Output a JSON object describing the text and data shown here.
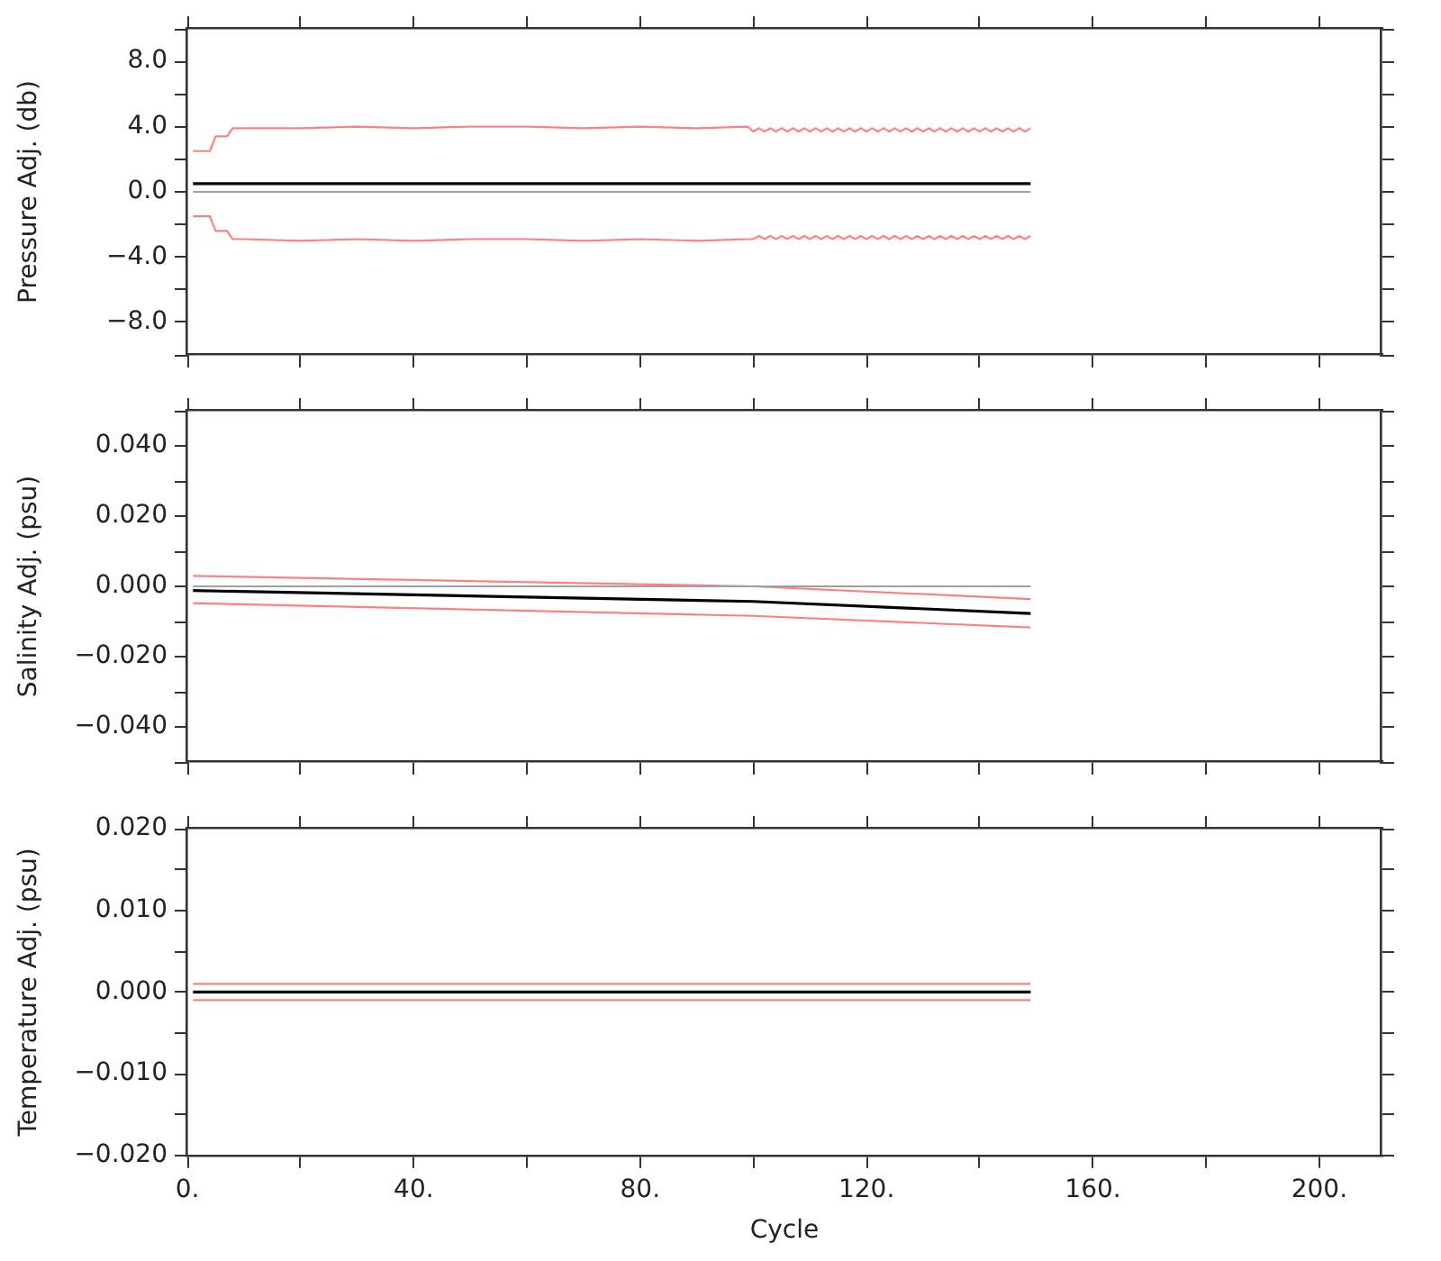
{
  "chart_data": [
    {
      "type": "line",
      "ylabel": "Pressure Adj. (db)",
      "xlim": [
        0,
        211
      ],
      "ylim": [
        -10,
        10
      ],
      "tick_labels": "y",
      "legend": false,
      "grid": false,
      "xticks": [
        0,
        20,
        40,
        60,
        80,
        100,
        120,
        140,
        160,
        180,
        200
      ],
      "yticks": [
        {
          "value": -10,
          "label": null
        },
        {
          "value": -8,
          "label": "−8.0"
        },
        {
          "value": -6,
          "label": null
        },
        {
          "value": -4,
          "label": "−4.0"
        },
        {
          "value": -2,
          "label": null
        },
        {
          "value": 0,
          "label": "0.0"
        },
        {
          "value": 2,
          "label": null
        },
        {
          "value": 4,
          "label": "4.0"
        },
        {
          "value": 6,
          "label": null
        },
        {
          "value": 8,
          "label": "8.0"
        },
        {
          "value": 10,
          "label": null
        }
      ],
      "series": [
        {
          "color": "#a0a0a0",
          "x": [
            1,
            149
          ],
          "values": [
            0,
            0
          ]
        },
        {
          "color": "#000000",
          "x": [
            1,
            149
          ],
          "values": [
            0.5,
            0.5
          ]
        },
        {
          "color": "#ff8080",
          "x": [
            1,
            4,
            5,
            7,
            8,
            10,
            20,
            30,
            40,
            50,
            60,
            70,
            80,
            90,
            99,
            100,
            101,
            102,
            103,
            104,
            105,
            106,
            107,
            108,
            109,
            110,
            111,
            112,
            113,
            114,
            115,
            116,
            117,
            118,
            119,
            120,
            121,
            122,
            123,
            124,
            125,
            126,
            127,
            128,
            129,
            130,
            131,
            132,
            133,
            134,
            135,
            136,
            137,
            138,
            139,
            140,
            141,
            142,
            143,
            144,
            145,
            146,
            147,
            148,
            149
          ],
          "values": [
            2.5,
            2.5,
            3.4,
            3.4,
            3.9,
            3.9,
            3.9,
            4.0,
            3.9,
            4.0,
            4.0,
            3.9,
            4.0,
            3.9,
            4.0,
            3.7,
            3.9,
            3.7,
            3.9,
            3.7,
            3.9,
            3.7,
            3.9,
            3.7,
            3.9,
            3.7,
            3.9,
            3.7,
            3.9,
            3.7,
            3.9,
            3.7,
            3.9,
            3.7,
            3.9,
            3.7,
            3.9,
            3.7,
            3.9,
            3.7,
            3.9,
            3.7,
            3.9,
            3.7,
            3.9,
            3.7,
            3.9,
            3.7,
            3.9,
            3.7,
            3.9,
            3.7,
            3.9,
            3.7,
            3.9,
            3.7,
            3.9,
            3.7,
            3.9,
            3.7,
            3.9,
            3.7,
            3.9,
            3.7,
            3.9
          ]
        },
        {
          "color": "#ff8080",
          "x": [
            1,
            4,
            5,
            7,
            8,
            10,
            20,
            30,
            40,
            50,
            60,
            70,
            80,
            90,
            99,
            100,
            101,
            102,
            103,
            104,
            105,
            106,
            107,
            108,
            109,
            110,
            111,
            112,
            113,
            114,
            115,
            116,
            117,
            118,
            119,
            120,
            121,
            122,
            123,
            124,
            125,
            126,
            127,
            128,
            129,
            130,
            131,
            132,
            133,
            134,
            135,
            136,
            137,
            138,
            139,
            140,
            141,
            142,
            143,
            144,
            145,
            146,
            147,
            148,
            149
          ],
          "values": [
            -1.5,
            -1.5,
            -2.4,
            -2.4,
            -2.9,
            -2.9,
            -3.0,
            -2.9,
            -3.0,
            -2.9,
            -2.9,
            -3.0,
            -2.9,
            -3.0,
            -2.9,
            -2.9,
            -2.7,
            -2.9,
            -2.7,
            -2.9,
            -2.7,
            -2.9,
            -2.7,
            -2.9,
            -2.7,
            -2.9,
            -2.7,
            -2.9,
            -2.7,
            -2.9,
            -2.7,
            -2.9,
            -2.7,
            -2.9,
            -2.7,
            -2.9,
            -2.7,
            -2.9,
            -2.7,
            -2.9,
            -2.7,
            -2.9,
            -2.7,
            -2.9,
            -2.7,
            -2.9,
            -2.7,
            -2.9,
            -2.7,
            -2.9,
            -2.7,
            -2.9,
            -2.7,
            -2.9,
            -2.7,
            -2.9,
            -2.7,
            -2.9,
            -2.7,
            -2.9,
            -2.7,
            -2.9,
            -2.7,
            -2.9,
            -2.7
          ]
        }
      ]
    },
    {
      "type": "line",
      "ylabel": "Salinity Adj. (psu)",
      "xlim": [
        0,
        211
      ],
      "ylim": [
        -0.05,
        0.05
      ],
      "tick_labels": "y",
      "legend": false,
      "grid": false,
      "xticks": [
        0,
        20,
        40,
        60,
        80,
        100,
        120,
        140,
        160,
        180,
        200
      ],
      "yticks": [
        {
          "value": -0.05,
          "label": null
        },
        {
          "value": -0.04,
          "label": "−0.040"
        },
        {
          "value": -0.03,
          "label": null
        },
        {
          "value": -0.02,
          "label": "−0.020"
        },
        {
          "value": -0.01,
          "label": null
        },
        {
          "value": 0,
          "label": "0.000"
        },
        {
          "value": 0.01,
          "label": null
        },
        {
          "value": 0.02,
          "label": "0.020"
        },
        {
          "value": 0.03,
          "label": null
        },
        {
          "value": 0.04,
          "label": "0.040"
        },
        {
          "value": 0.05,
          "label": null
        }
      ],
      "series": [
        {
          "color": "#a0a0a0",
          "x": [
            1,
            149
          ],
          "values": [
            0,
            0
          ]
        },
        {
          "color": "#ff8080",
          "x": [
            1,
            100,
            149
          ],
          "values": [
            0.003,
            0.0,
            -0.0036
          ]
        },
        {
          "color": "#ff8080",
          "x": [
            1,
            100,
            149
          ],
          "values": [
            -0.0048,
            -0.0084,
            -0.0117
          ]
        },
        {
          "color": "#000000",
          "x": [
            1,
            100,
            149
          ],
          "values": [
            -0.0012,
            -0.0043,
            -0.0077
          ]
        }
      ]
    },
    {
      "type": "line",
      "ylabel": "Temperature Adj. (psu)",
      "xlabel": "Cycle",
      "xlim": [
        0,
        211
      ],
      "ylim": [
        -0.02,
        0.02
      ],
      "legend": false,
      "grid": false,
      "xticks": [
        {
          "value": 0,
          "label": "0."
        },
        {
          "value": 20,
          "label": null
        },
        {
          "value": 40,
          "label": "40."
        },
        {
          "value": 60,
          "label": null
        },
        {
          "value": 80,
          "label": "80."
        },
        {
          "value": 100,
          "label": null
        },
        {
          "value": 120,
          "label": "120."
        },
        {
          "value": 140,
          "label": null
        },
        {
          "value": 160,
          "label": "160."
        },
        {
          "value": 180,
          "label": null
        },
        {
          "value": 200,
          "label": "200."
        }
      ],
      "yticks": [
        {
          "value": -0.02,
          "label": "−0.020"
        },
        {
          "value": -0.015,
          "label": null
        },
        {
          "value": -0.01,
          "label": "−0.010"
        },
        {
          "value": -0.005,
          "label": null
        },
        {
          "value": 0,
          "label": "0.000"
        },
        {
          "value": 0.005,
          "label": null
        },
        {
          "value": 0.01,
          "label": "0.010"
        },
        {
          "value": 0.015,
          "label": null
        },
        {
          "value": 0.02,
          "label": "0.020"
        }
      ],
      "series": [
        {
          "color": "#ff8080",
          "x": [
            1,
            149
          ],
          "values": [
            0.001,
            0.001
          ]
        },
        {
          "color": "#ff8080",
          "x": [
            1,
            149
          ],
          "values": [
            -0.001,
            -0.001
          ]
        },
        {
          "color": "#000000",
          "x": [
            1,
            149
          ],
          "values": [
            0,
            0
          ]
        }
      ]
    }
  ]
}
